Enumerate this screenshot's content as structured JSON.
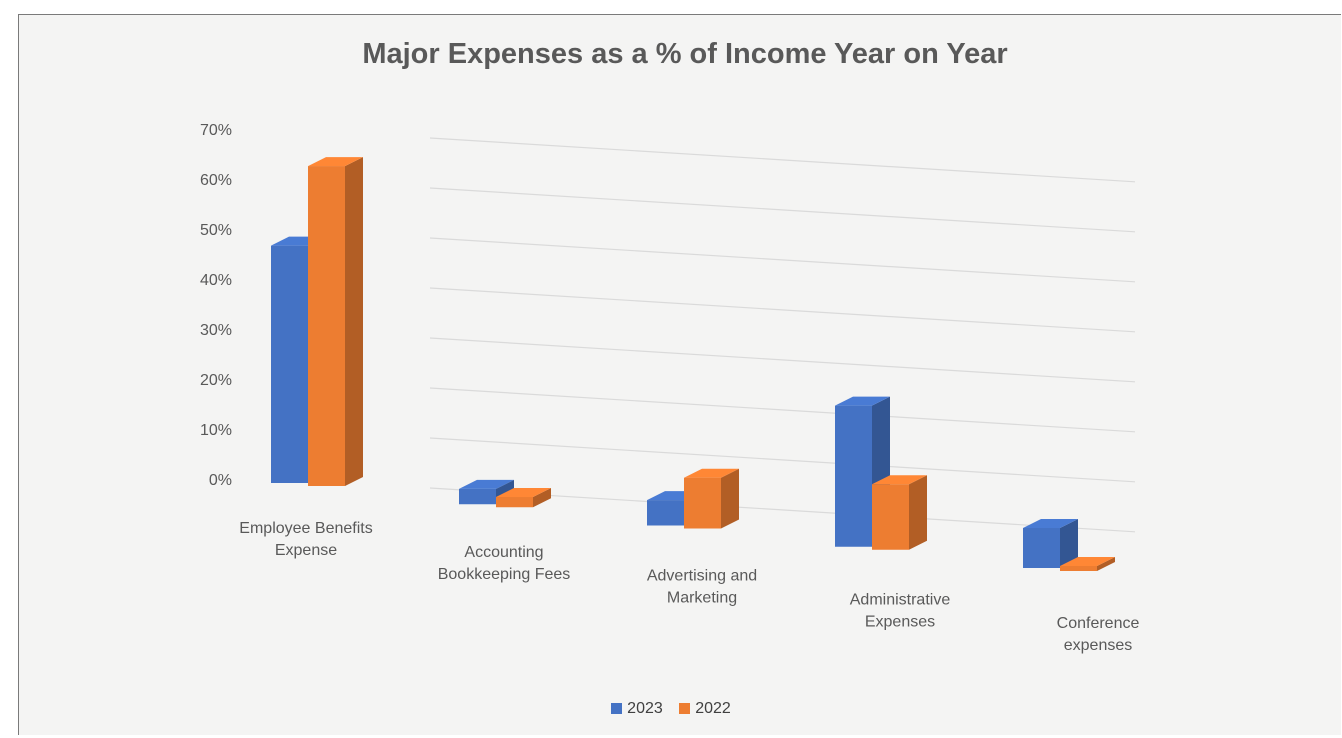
{
  "chart_data": {
    "type": "bar",
    "title": "Major Expenses as a % of Income Year on Year",
    "categories": [
      [
        "Employee Benefits",
        "Expense"
      ],
      [
        "Accounting",
        "Bookkeeping Fees"
      ],
      [
        "Advertising and",
        "Marketing"
      ],
      [
        "Administrative",
        "Expenses"
      ],
      [
        "Conference",
        "expenses"
      ]
    ],
    "series": [
      {
        "name": "2023",
        "color": "#4472C4",
        "values": [
          46,
          3,
          5,
          28,
          8
        ]
      },
      {
        "name": "2022",
        "color": "#ED7D31",
        "values": [
          62,
          2,
          10,
          13,
          1
        ]
      }
    ],
    "ylim": [
      0,
      70
    ],
    "yticks": [
      "0%",
      "10%",
      "20%",
      "30%",
      "40%",
      "50%",
      "60%",
      "70%"
    ],
    "grid": true,
    "legend_position": "bottom",
    "style": "3d-clustered-column"
  }
}
